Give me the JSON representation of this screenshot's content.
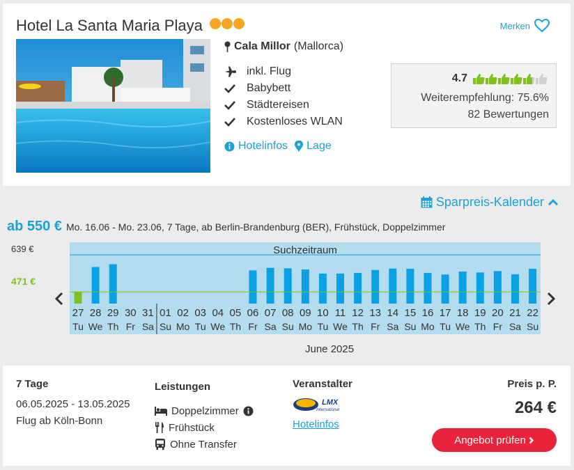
{
  "hotel": {
    "name": "Hotel La Santa Maria Playa",
    "stars": 3,
    "merken_label": "Merken",
    "location_city": "Cala Millor",
    "location_region": "(Mallorca)",
    "features": [
      {
        "icon": "plane-icon",
        "label": "inkl. Flug"
      },
      {
        "icon": "check-icon",
        "label": "Babybett"
      },
      {
        "icon": "check-icon",
        "label": "Städtereisen"
      },
      {
        "icon": "check-icon",
        "label": "Kostenloses WLAN"
      }
    ],
    "link_hotelinfos": "Hotelinfos",
    "link_lage": "Lage"
  },
  "rating": {
    "score": "4.7",
    "thumbs_full": 5,
    "recommendation": "Weiterempfehlung: 75.6%",
    "reviews": "82 Bewertungen"
  },
  "calendar": {
    "link_label": "Sparpreis-Kalender",
    "price_from": "ab 550 €",
    "description": "Mo. 16.06 - Mo. 23.06, 7 Tage, ab Berlin-Brandenburg (BER), Frühstück, Doppelzimmer",
    "y_max_label": "639 €",
    "y_min_label": "471 €",
    "search_range_label": "Suchzeitraum",
    "month_label": "June 2025"
  },
  "chart_data": {
    "type": "bar",
    "ylim": [
      420,
      639
    ],
    "min_line": 471,
    "categories": [
      "27",
      "28",
      "29",
      "30",
      "31",
      "01",
      "02",
      "03",
      "04",
      "05",
      "06",
      "07",
      "08",
      "09",
      "10",
      "11",
      "12",
      "13",
      "14",
      "15",
      "16",
      "17",
      "18",
      "19",
      "20",
      "21",
      "22"
    ],
    "weekdays": [
      "Tu",
      "We",
      "Th",
      "Fr",
      "Sa",
      "Su",
      "Mo",
      "Tu",
      "We",
      "Th",
      "Fr",
      "Sa",
      "Su",
      "Mo",
      "Tu",
      "We",
      "Th",
      "Fr",
      "Sa",
      "Su",
      "Mo",
      "Tu",
      "We",
      "Th",
      "Fr",
      "Sa",
      "Su"
    ],
    "values": [
      471,
      580,
      592,
      null,
      null,
      null,
      null,
      null,
      null,
      null,
      565,
      576,
      574,
      569,
      551,
      551,
      554,
      567,
      573,
      572,
      554,
      547,
      560,
      556,
      562,
      548,
      572
    ],
    "highlight_index": 0,
    "month_divider_after_index": 4,
    "colors": {
      "bar": "#0aa0e6",
      "highlight": "#7dc21e",
      "background": "#b3dcee"
    }
  },
  "offer": {
    "days": "7 Tage",
    "dates": "06.05.2025 - 13.05.2025",
    "flight": "Flug ab Köln-Bonn",
    "leistungen_title": "Leistungen",
    "leistungen": [
      {
        "icon": "bed-icon",
        "label": "Doppelzimmer"
      },
      {
        "icon": "cutlery-icon",
        "label": "Frühstück"
      },
      {
        "icon": "bus-icon",
        "label": "Ohne Transfer"
      }
    ],
    "veranstalter_title": "Veranstalter",
    "veranstalter_logo_text": "LMX",
    "veranstalter_logo_sub": "International",
    "veranstalter_link": "Hotelinfos",
    "price_label": "Preis p. P.",
    "price": "264 €",
    "button_label": "Angebot prüfen"
  },
  "colors": {
    "accent": "#1aa1d6",
    "price_min": "#7dc21e",
    "cta": "#e8233a",
    "stars": "#f5a623"
  }
}
